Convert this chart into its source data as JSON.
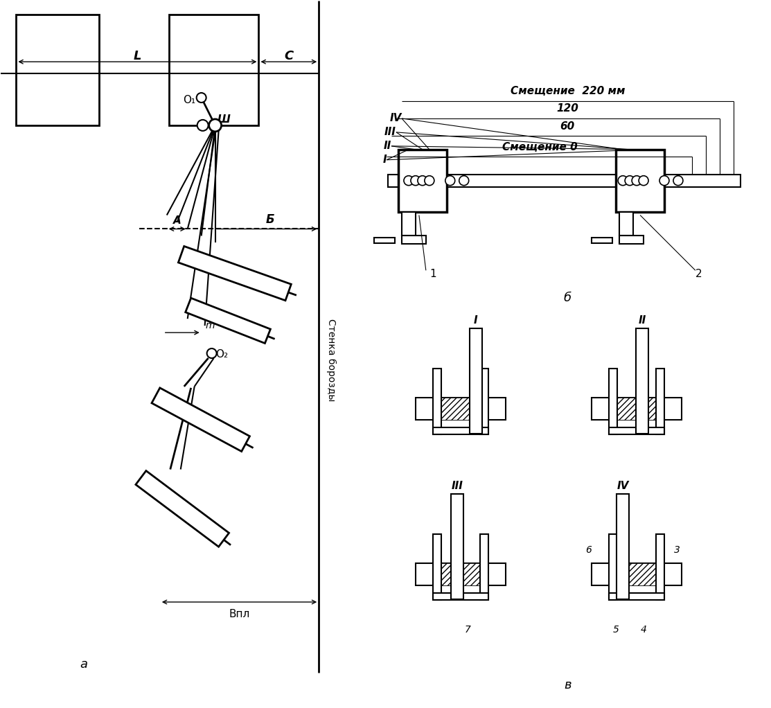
{
  "bg_color": "#ffffff",
  "fig_width": 11.13,
  "fig_height": 10.22,
  "label_a": "a",
  "label_b": "б",
  "label_v": "в",
  "text_stenka": "Стенка борозды",
  "text_smesh_220": "Смещение  220 мм",
  "text_smesh_0": "Смещение 0",
  "text_60": "60",
  "text_120": "120",
  "text_L": "L",
  "text_C": "C",
  "text_A": "A",
  "text_B": "Б",
  "text_O1": "O₁",
  "text_O2": "O₂",
  "text_Sh": "Ш",
  "text_m": "m",
  "text_Bpl": "Bпл",
  "roman_I": "I",
  "roman_II": "II",
  "roman_III": "III",
  "roman_IV": "IV"
}
